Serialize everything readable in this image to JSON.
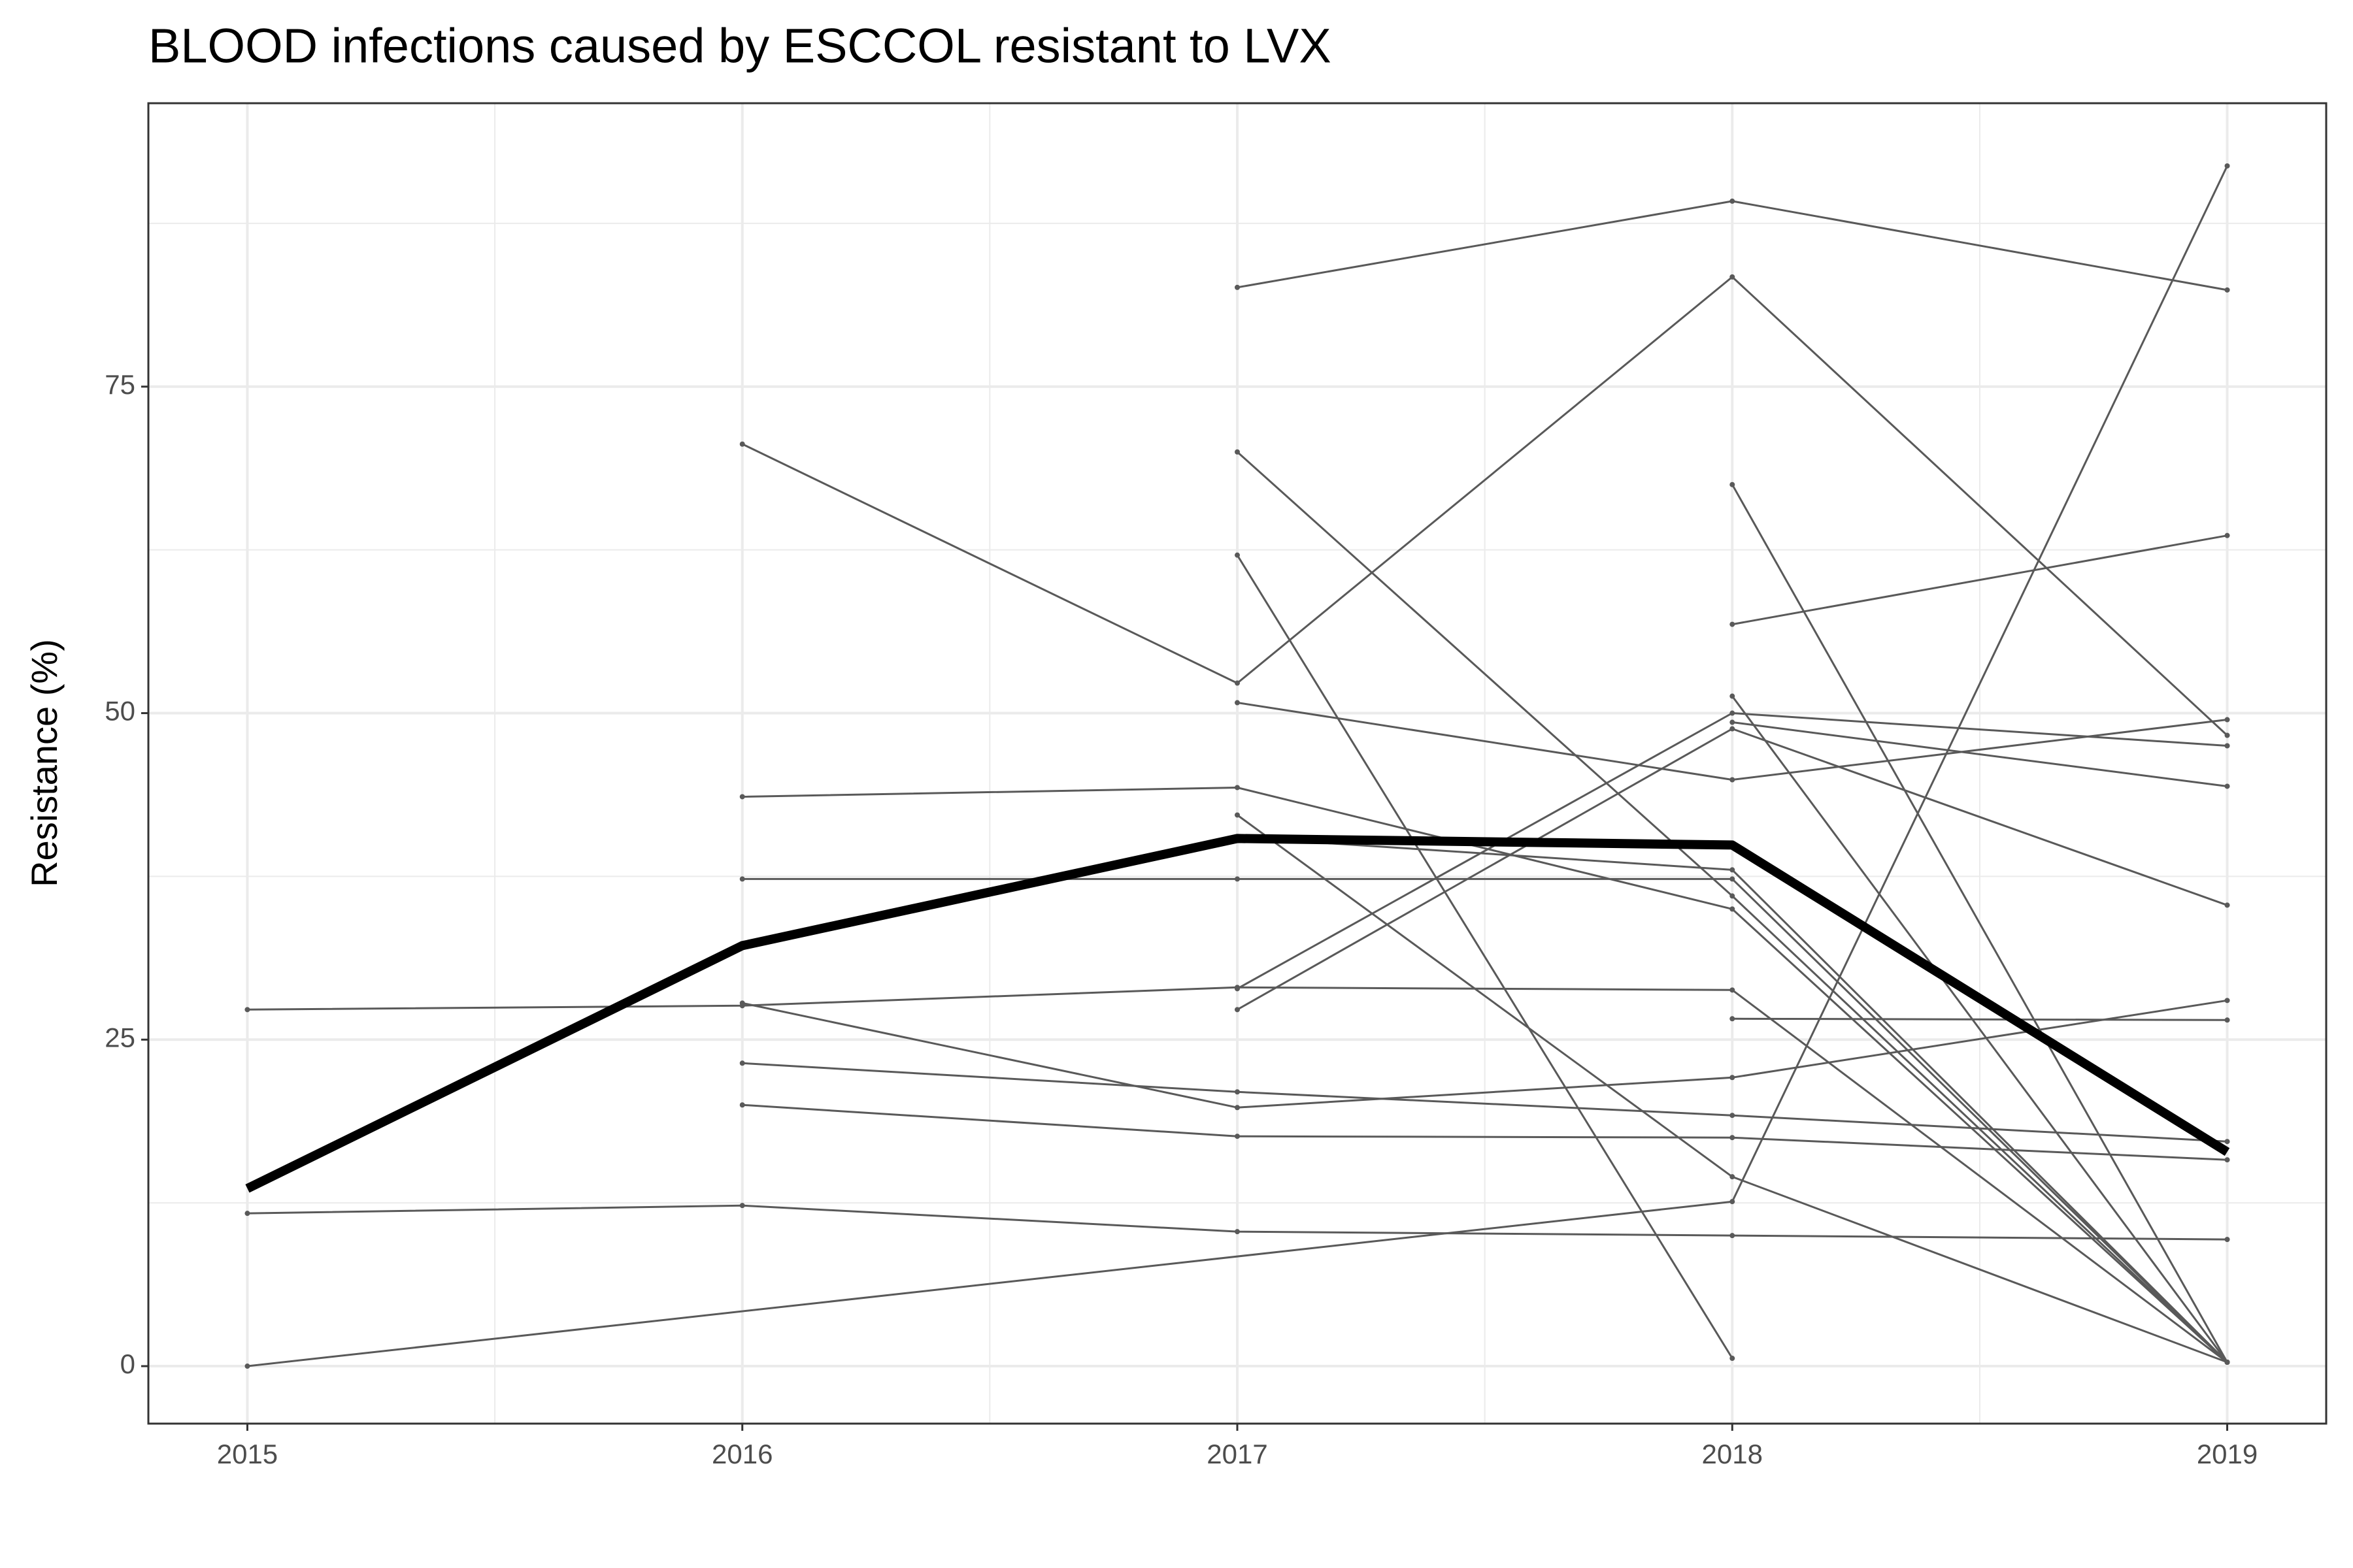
{
  "chart_data": {
    "type": "line",
    "title": "BLOOD infections caused by ESCCOL resistant to LVX",
    "y_label": "Resistance (%)",
    "xlim": [
      2014.8,
      2019.2
    ],
    "xticks": [
      2015,
      2016,
      2017,
      2018,
      2019
    ],
    "ylim": [
      -4.4,
      96.7
    ],
    "yticks": [
      0,
      25,
      50,
      75
    ],
    "grid": true,
    "series": [
      {
        "color": "#595959",
        "x": [
          2015,
          2016,
          2017,
          2018,
          2019
        ],
        "values": [
          27.3,
          27.6,
          29.0,
          28.8,
          0.3
        ]
      },
      {
        "color": "#595959",
        "x": [
          2015,
          2016,
          2017,
          2018,
          2019
        ],
        "values": [
          11.7,
          12.3,
          10.3,
          10.0,
          9.7
        ]
      },
      {
        "color": "#595959",
        "x": [
          2015,
          2018,
          2019
        ],
        "values": [
          0,
          12.6,
          91.9
        ]
      },
      {
        "color": "#595959",
        "x": [
          2016,
          2017,
          2018,
          2019
        ],
        "values": [
          70.6,
          52.3,
          83.4,
          48.3
        ]
      },
      {
        "color": "#595959",
        "x": [
          2016,
          2017,
          2018,
          2019
        ],
        "values": [
          43.6,
          44.3,
          35.0,
          0.3
        ]
      },
      {
        "color": "#595959",
        "x": [
          2016,
          2017,
          2018,
          2019
        ],
        "values": [
          37.3,
          37.3,
          37.3,
          0.3
        ]
      },
      {
        "color": "#595959",
        "x": [
          2016,
          2017,
          2018,
          2019
        ],
        "values": [
          27.8,
          19.8,
          22.1,
          28.0
        ]
      },
      {
        "color": "#595959",
        "x": [
          2016,
          2017,
          2018,
          2019
        ],
        "values": [
          23.2,
          21.0,
          19.2,
          17.2
        ]
      },
      {
        "color": "#595959",
        "x": [
          2016,
          2017,
          2018,
          2019
        ],
        "values": [
          20.0,
          17.6,
          17.5,
          15.8
        ]
      },
      {
        "color": "#595959",
        "x": [
          2017,
          2018,
          2019
        ],
        "values": [
          82.6,
          89.2,
          82.4
        ]
      },
      {
        "color": "#595959",
        "x": [
          2017,
          2018,
          2019
        ],
        "values": [
          70.0,
          36.0,
          0.3
        ]
      },
      {
        "color": "#595959",
        "x": [
          2017,
          2018
        ],
        "values": [
          62.1,
          0.6
        ]
      },
      {
        "color": "#595959",
        "x": [
          2017,
          2018,
          2019
        ],
        "values": [
          50.8,
          44.9,
          49.5
        ]
      },
      {
        "color": "#595959",
        "x": [
          2017,
          2018,
          2019
        ],
        "values": [
          42.2,
          14.5,
          0.3
        ]
      },
      {
        "color": "#595959",
        "x": [
          2017,
          2018,
          2019
        ],
        "values": [
          40.5,
          38.0,
          0.3
        ]
      },
      {
        "color": "#595959",
        "x": [
          2017,
          2018,
          2019
        ],
        "values": [
          28.9,
          50.0,
          47.5
        ]
      },
      {
        "color": "#595959",
        "x": [
          2017,
          2018,
          2019
        ],
        "values": [
          27.3,
          48.8,
          35.3
        ]
      },
      {
        "color": "#595959",
        "x": [
          2018,
          2019
        ],
        "values": [
          67.5,
          0.3
        ]
      },
      {
        "color": "#595959",
        "x": [
          2018,
          2019
        ],
        "values": [
          56.8,
          63.6
        ]
      },
      {
        "color": "#595959",
        "x": [
          2018,
          2019
        ],
        "values": [
          51.3,
          0.3
        ]
      },
      {
        "color": "#595959",
        "x": [
          2018,
          2019
        ],
        "values": [
          49.3,
          44.4
        ]
      },
      {
        "color": "#595959",
        "x": [
          2018,
          2019
        ],
        "values": [
          26.6,
          26.5
        ]
      },
      {
        "color": "#000000",
        "x": [
          2015,
          2016,
          2017,
          2018,
          2019
        ],
        "values": [
          13.6,
          32.2,
          40.4,
          39.9,
          16.4
        ]
      }
    ]
  }
}
